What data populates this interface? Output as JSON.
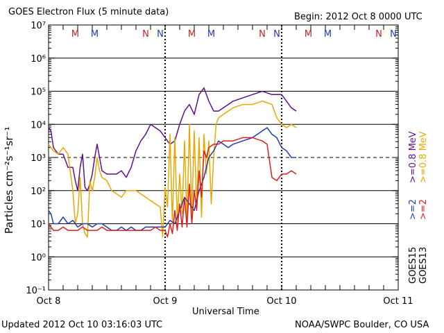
{
  "header": {
    "title": "GOES Electron Flux (5 minute data)",
    "begin": "Begin: 2012 Oct 8 0000 UTC"
  },
  "footer": {
    "updated": "Updated 2012 Oct 10 03:16:03 UTC",
    "source": "NOAA/SWPC Boulder, CO USA"
  },
  "legend": {
    "goes13": "GOES13",
    "goes15": "GOES15",
    "g13_low": ">=0.8 MeV",
    "g13_high": ">=2",
    "g15_low": ">=0.8 MeV",
    "g15_high": ">=2"
  },
  "markers": {
    "day1": [
      "M",
      "M",
      "N",
      "N"
    ],
    "day2": [
      "M",
      "M",
      "N",
      "N"
    ],
    "day3": [
      "M",
      "M",
      "N",
      "N"
    ]
  },
  "colors": {
    "goes15_low": "#5b0f8c",
    "goes15_high": "#1e3cb4",
    "goes13_low": "#e6a800",
    "goes13_high": "#dc1e1e",
    "marker_m": "#c81e1e",
    "marker_n": "#1e3cb4"
  },
  "chart_data": {
    "type": "line",
    "ylabel": "Particles cm⁻²s⁻¹sr⁻¹",
    "xlabel": "Universal Time",
    "x_tick_labels": [
      "Oct 8",
      "Oct 9",
      "Oct 10",
      "Oct 11"
    ],
    "y_tick_labels": [
      "10⁻¹",
      "10⁰",
      "10¹",
      "10²",
      "10³",
      "10⁴",
      "10⁵",
      "10⁶",
      "10⁷"
    ],
    "x_unit": "hours since 2012 Oct 8 0000 UTC",
    "xlim": [
      0,
      72
    ],
    "ylim_log10": [
      -1,
      7
    ],
    "y_scale": "log",
    "series": [
      {
        "name": "GOES15 >=0.8 MeV",
        "color_key": "goes15_low",
        "points": [
          [
            0,
            3.9
          ],
          [
            0.5,
            3.8
          ],
          [
            1,
            3.3
          ],
          [
            1.5,
            3.2
          ],
          [
            2,
            3.1
          ],
          [
            3,
            3.1
          ],
          [
            4,
            2.7
          ],
          [
            5,
            2.7
          ],
          [
            5.5,
            2.3
          ],
          [
            6,
            2.0
          ],
          [
            6.5,
            2.7
          ],
          [
            7,
            3.1
          ],
          [
            7.5,
            2.1
          ],
          [
            8,
            2.0
          ],
          [
            8.5,
            2.2
          ],
          [
            9,
            2.5
          ],
          [
            9.5,
            3.0
          ],
          [
            10,
            3.4
          ],
          [
            10.5,
            3.0
          ],
          [
            11,
            2.6
          ],
          [
            12,
            2.5
          ],
          [
            13,
            2.5
          ],
          [
            14,
            2.5
          ],
          [
            15,
            2.6
          ],
          [
            16,
            2.4
          ],
          [
            17,
            2.7
          ],
          [
            18,
            3.2
          ],
          [
            19,
            3.5
          ],
          [
            20,
            3.7
          ],
          [
            21,
            4.0
          ],
          [
            22,
            3.9
          ],
          [
            23,
            3.8
          ],
          [
            24,
            3.6
          ],
          [
            25,
            3.4
          ],
          [
            26,
            3.5
          ],
          [
            27,
            4.0
          ],
          [
            28,
            4.4
          ],
          [
            29,
            4.6
          ],
          [
            30,
            4.3
          ],
          [
            31,
            4.9
          ],
          [
            32,
            5.1
          ],
          [
            33,
            4.7
          ],
          [
            34,
            4.4
          ],
          [
            35,
            4.4
          ],
          [
            36,
            4.5
          ],
          [
            37,
            4.6
          ],
          [
            38,
            4.7
          ],
          [
            40,
            4.8
          ],
          [
            42,
            4.9
          ],
          [
            44,
            5.0
          ],
          [
            46,
            4.9
          ],
          [
            48,
            4.9
          ],
          [
            49,
            4.7
          ],
          [
            50,
            4.5
          ],
          [
            51,
            4.4
          ]
        ]
      },
      {
        "name": "GOES13 >=0.8 MeV",
        "color_key": "goes13_low",
        "points": [
          [
            0,
            3.4
          ],
          [
            0.5,
            3.3
          ],
          [
            1,
            3.2
          ],
          [
            2,
            3.1
          ],
          [
            3,
            3.3
          ],
          [
            4,
            3.1
          ],
          [
            5,
            2.0
          ],
          [
            5.5,
            1.0
          ],
          [
            6,
            1.3
          ],
          [
            6.5,
            2.4
          ],
          [
            7,
            1.0
          ],
          [
            7.5,
            0.7
          ],
          [
            8,
            0.6
          ],
          [
            8.5,
            2.3
          ],
          [
            9,
            2.0
          ],
          [
            9.5,
            2.4
          ],
          [
            10,
            3.0
          ],
          [
            10.5,
            2.6
          ],
          [
            11,
            2.4
          ],
          [
            12,
            2.3
          ],
          [
            13,
            2.0
          ],
          [
            14,
            1.9
          ],
          [
            15,
            1.8
          ],
          [
            16,
            2.0
          ],
          [
            17,
            2.0
          ],
          [
            18,
            2.0
          ],
          [
            19,
            1.9
          ],
          [
            20,
            1.8
          ],
          [
            21,
            1.7
          ],
          [
            22,
            1.6
          ],
          [
            23,
            1.5
          ],
          [
            23.5,
            0.6
          ],
          [
            24,
            2.1
          ],
          [
            24.5,
            1.5
          ],
          [
            25,
            3.7
          ],
          [
            25.5,
            1.0
          ],
          [
            26,
            3.6
          ],
          [
            26.5,
            1.1
          ],
          [
            27,
            2.5
          ],
          [
            27.5,
            1.3
          ],
          [
            28,
            3.5
          ],
          [
            28.5,
            1.0
          ],
          [
            29,
            4.0
          ],
          [
            29.5,
            1.3
          ],
          [
            30,
            3.8
          ],
          [
            30.5,
            1.5
          ],
          [
            31,
            3.6
          ],
          [
            31.5,
            1.2
          ],
          [
            32,
            3.7
          ],
          [
            32.5,
            2.5
          ],
          [
            33,
            3.5
          ],
          [
            33.5,
            1.6
          ],
          [
            34,
            3.0
          ],
          [
            34.5,
            4.0
          ],
          [
            35,
            4.2
          ],
          [
            36,
            4.3
          ],
          [
            38,
            4.5
          ],
          [
            40,
            4.6
          ],
          [
            42,
            4.6
          ],
          [
            44,
            4.7
          ],
          [
            46,
            4.6
          ],
          [
            47,
            4.2
          ],
          [
            48,
            4.0
          ],
          [
            49,
            3.9
          ],
          [
            50,
            4.0
          ],
          [
            51,
            3.9
          ]
        ]
      },
      {
        "name": "GOES15 >=2",
        "color_key": "goes15_high",
        "points": [
          [
            0,
            1.4
          ],
          [
            0.5,
            1.3
          ],
          [
            1,
            1.0
          ],
          [
            2,
            1.0
          ],
          [
            3,
            1.2
          ],
          [
            4,
            1.0
          ],
          [
            5,
            1.1
          ],
          [
            6,
            0.9
          ],
          [
            7,
            1.0
          ],
          [
            8,
            1.0
          ],
          [
            9,
            0.9
          ],
          [
            10,
            1.0
          ],
          [
            11,
            1.0
          ],
          [
            12,
            0.9
          ],
          [
            13,
            0.8
          ],
          [
            14,
            0.8
          ],
          [
            15,
            0.9
          ],
          [
            16,
            0.8
          ],
          [
            17,
            0.9
          ],
          [
            18,
            0.8
          ],
          [
            19,
            0.8
          ],
          [
            20,
            0.9
          ],
          [
            21,
            0.9
          ],
          [
            22,
            0.9
          ],
          [
            23,
            0.9
          ],
          [
            24,
            0.9
          ],
          [
            25,
            1.1
          ],
          [
            26,
            1.0
          ],
          [
            27,
            1.4
          ],
          [
            28,
            1.8
          ],
          [
            29,
            1.6
          ],
          [
            30,
            1.4
          ],
          [
            31,
            2.0
          ],
          [
            32,
            2.4
          ],
          [
            33,
            3.0
          ],
          [
            34,
            3.2
          ],
          [
            35,
            3.5
          ],
          [
            36,
            3.4
          ],
          [
            37,
            3.3
          ],
          [
            38,
            3.4
          ],
          [
            40,
            3.5
          ],
          [
            42,
            3.6
          ],
          [
            44,
            3.8
          ],
          [
            45,
            3.9
          ],
          [
            46,
            3.7
          ],
          [
            47,
            3.6
          ],
          [
            48,
            3.3
          ],
          [
            49,
            3.2
          ],
          [
            50,
            3.0
          ],
          [
            51,
            3.0
          ]
        ]
      },
      {
        "name": "GOES13 >=2",
        "color_key": "goes13_high",
        "points": [
          [
            0,
            1.0
          ],
          [
            1,
            0.8
          ],
          [
            2,
            0.8
          ],
          [
            3,
            0.9
          ],
          [
            4,
            0.8
          ],
          [
            5,
            0.8
          ],
          [
            6,
            0.8
          ],
          [
            7,
            0.9
          ],
          [
            8,
            0.8
          ],
          [
            9,
            0.8
          ],
          [
            10,
            0.8
          ],
          [
            11,
            0.9
          ],
          [
            12,
            0.8
          ],
          [
            13,
            0.8
          ],
          [
            14,
            0.8
          ],
          [
            15,
            0.8
          ],
          [
            16,
            0.8
          ],
          [
            17,
            0.8
          ],
          [
            18,
            0.8
          ],
          [
            19,
            0.8
          ],
          [
            20,
            0.8
          ],
          [
            21,
            0.8
          ],
          [
            22,
            0.9
          ],
          [
            23,
            0.8
          ],
          [
            24,
            0.8
          ],
          [
            24.5,
            0.6
          ],
          [
            25,
            1.0
          ],
          [
            25.5,
            0.7
          ],
          [
            26,
            1.4
          ],
          [
            26.5,
            0.8
          ],
          [
            27,
            1.6
          ],
          [
            27.5,
            0.9
          ],
          [
            28,
            1.8
          ],
          [
            28.5,
            0.9
          ],
          [
            29,
            2.2
          ],
          [
            29.5,
            1.0
          ],
          [
            30,
            2.0
          ],
          [
            30.5,
            1.4
          ],
          [
            31,
            2.6
          ],
          [
            31.5,
            1.8
          ],
          [
            32,
            3.2
          ],
          [
            32.5,
            3.0
          ],
          [
            33,
            3.3
          ],
          [
            34,
            3.4
          ],
          [
            35,
            3.4
          ],
          [
            36,
            3.5
          ],
          [
            38,
            3.5
          ],
          [
            40,
            3.6
          ],
          [
            42,
            3.6
          ],
          [
            44,
            3.5
          ],
          [
            45,
            3.4
          ],
          [
            46,
            2.4
          ],
          [
            47,
            2.3
          ],
          [
            48,
            2.5
          ],
          [
            49,
            2.5
          ],
          [
            50,
            2.6
          ],
          [
            51,
            2.5
          ]
        ]
      }
    ]
  }
}
